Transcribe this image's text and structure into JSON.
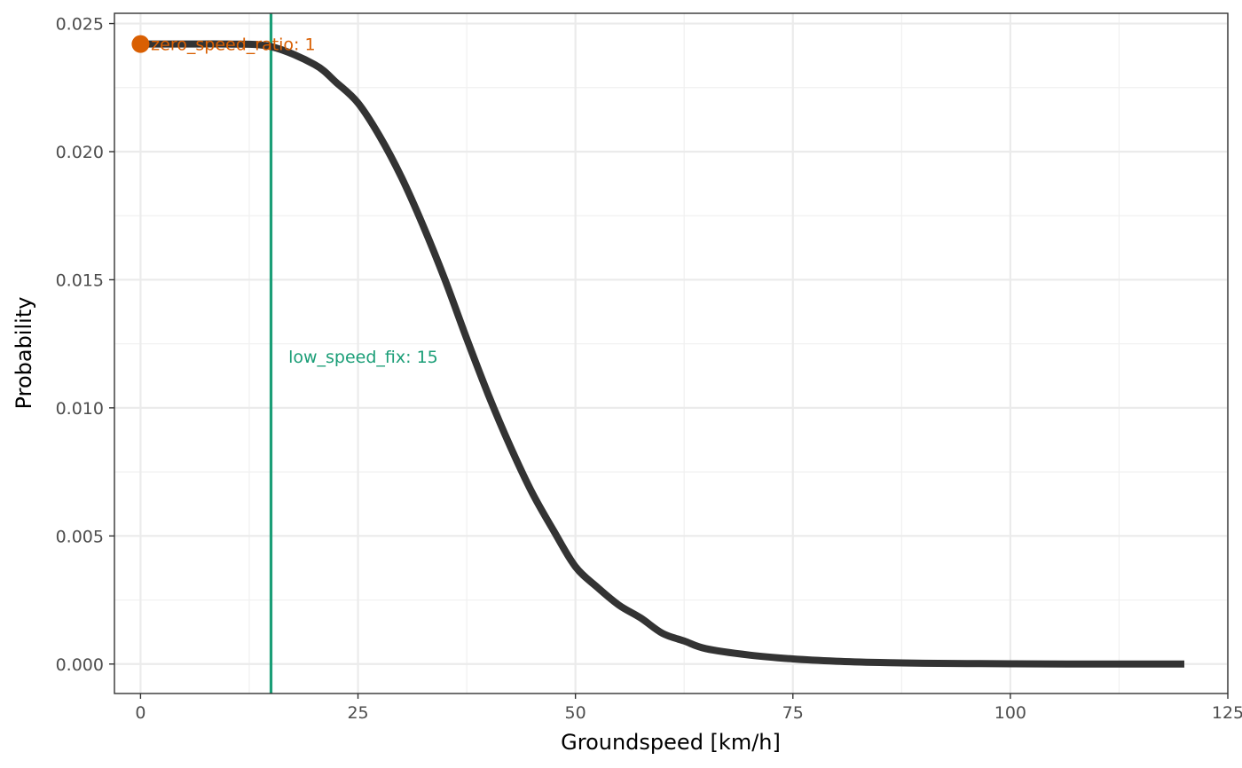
{
  "chart_data": {
    "type": "line",
    "xlabel": "Groundspeed [km/h]",
    "ylabel": "Probability",
    "xlim": [
      -3,
      125
    ],
    "ylim": [
      -0.00115,
      0.0254
    ],
    "x_ticks": [
      0,
      25,
      50,
      75,
      100,
      125
    ],
    "x_tick_labels": [
      "0",
      "25",
      "50",
      "75",
      "100",
      "125"
    ],
    "y_ticks": [
      0.0,
      0.005,
      0.01,
      0.015,
      0.02,
      0.025
    ],
    "y_tick_labels": [
      "0.000",
      "0.005",
      "0.010",
      "0.015",
      "0.020",
      "0.025"
    ],
    "grid": true,
    "series": [
      {
        "color": "#333333",
        "x": [
          0,
          5,
          10,
          15,
          20,
          22.5,
          25,
          27.5,
          30,
          32.5,
          35,
          37.5,
          40,
          42.5,
          45,
          47.5,
          50,
          52.5,
          55,
          57.5,
          60,
          62.5,
          65,
          70,
          75,
          80,
          85,
          90,
          95,
          100,
          110,
          120
        ],
        "y": [
          0.0242,
          0.0242,
          0.0242,
          0.0241,
          0.0234,
          0.0227,
          0.0219,
          0.0206,
          0.019,
          0.0171,
          0.015,
          0.0127,
          0.0105,
          0.0085,
          0.0067,
          0.0052,
          0.0038,
          0.003,
          0.0023,
          0.0018,
          0.0012,
          0.0009,
          0.0006,
          0.00035,
          0.0002,
          0.00011,
          6e-05,
          3e-05,
          2e-05,
          1e-05,
          0.0,
          0.0
        ]
      }
    ],
    "point": {
      "x": 0,
      "y": 0.0242,
      "color": "#D95F02"
    },
    "vline": {
      "x": 15,
      "color": "#1B9E77"
    },
    "annotations": [
      {
        "text": "zero_speed_ratio: 1",
        "x": 1.2,
        "y": 0.0242,
        "color": "#D95F02"
      },
      {
        "text": "low_speed_fix: 15",
        "x": 17,
        "y": 0.012,
        "color": "#1B9E77"
      }
    ]
  }
}
